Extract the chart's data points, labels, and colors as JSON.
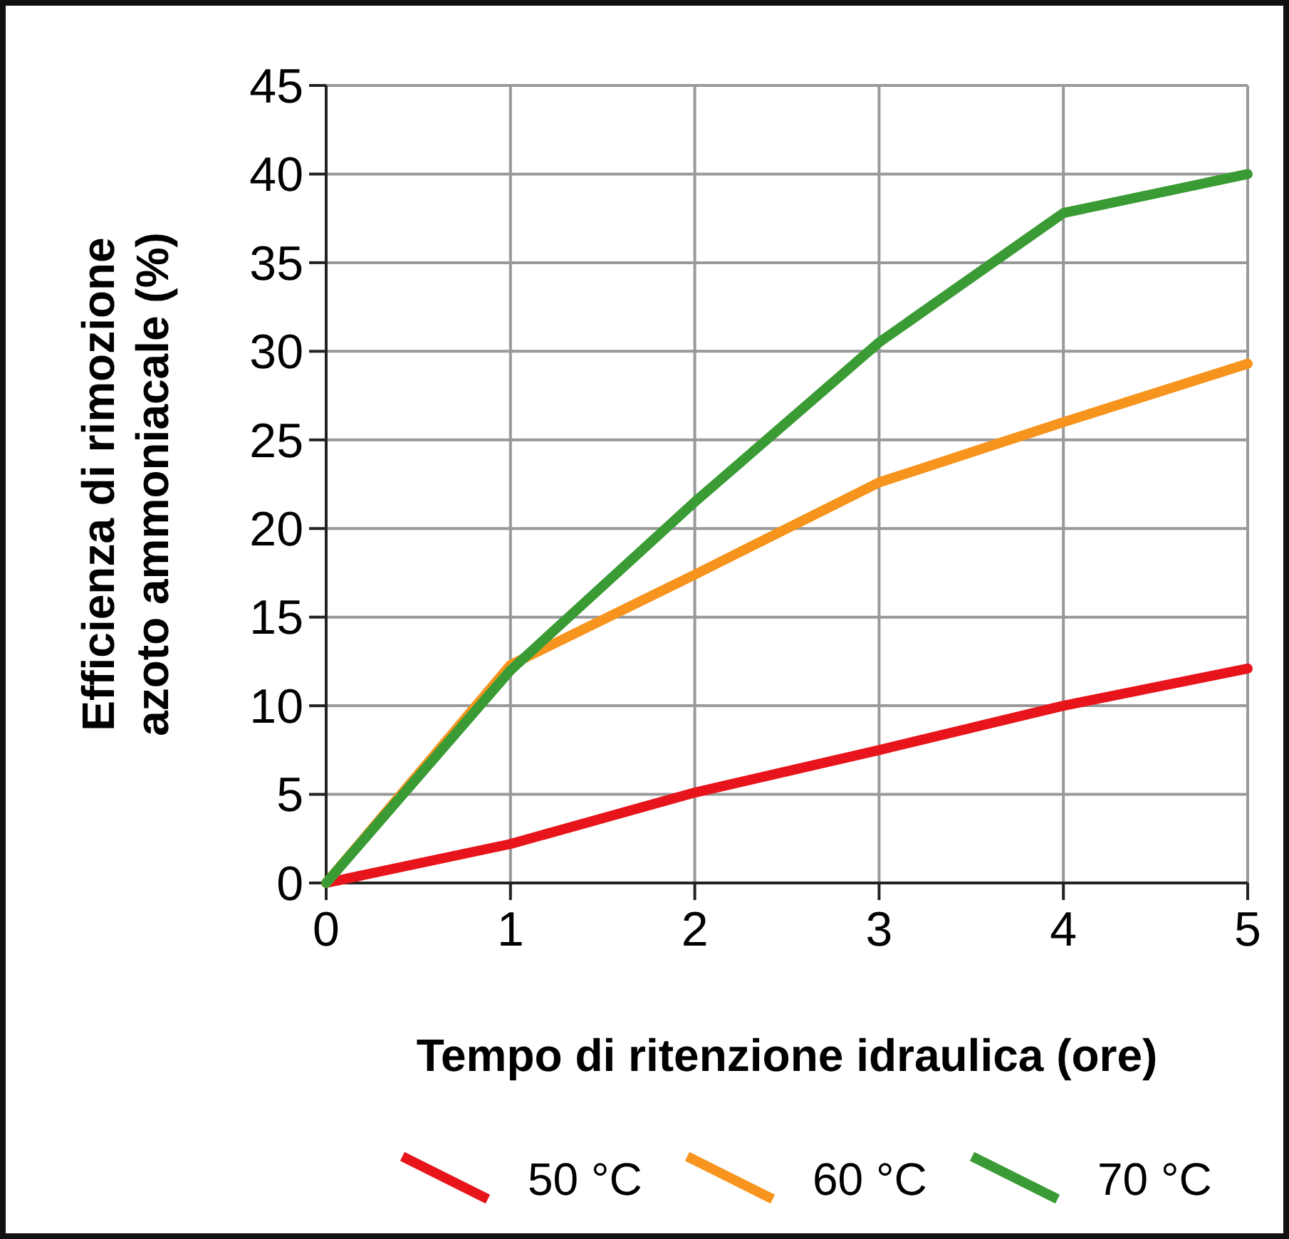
{
  "chart_data": {
    "type": "line",
    "xlabel": "Tempo di ritenzione idraulica (ore)",
    "ylabel": "Efficienza di rimozione\nazoto ammoniacale (%)",
    "x": [
      0,
      1,
      2,
      3,
      4,
      5
    ],
    "series": [
      {
        "name": "50 °C",
        "color": "#e8141b",
        "values": [
          0,
          2.2,
          5.1,
          7.5,
          10,
          12.1
        ]
      },
      {
        "name": "60 °C",
        "color": "#f7941d",
        "values": [
          0,
          12.3,
          17.4,
          22.6,
          26,
          29.3
        ]
      },
      {
        "name": "70 °C",
        "color": "#3a9b35",
        "values": [
          0,
          12,
          21.5,
          30.5,
          37.8,
          40
        ]
      }
    ],
    "xlim": [
      0,
      5
    ],
    "xticks": [
      0,
      1,
      2,
      3,
      4,
      5
    ],
    "ylim": [
      0,
      45
    ],
    "yticks": [
      0,
      5,
      10,
      15,
      20,
      25,
      30,
      35,
      40,
      45
    ],
    "grid": true,
    "legend": "bottom",
    "marker": "none",
    "line_style": "solid"
  }
}
